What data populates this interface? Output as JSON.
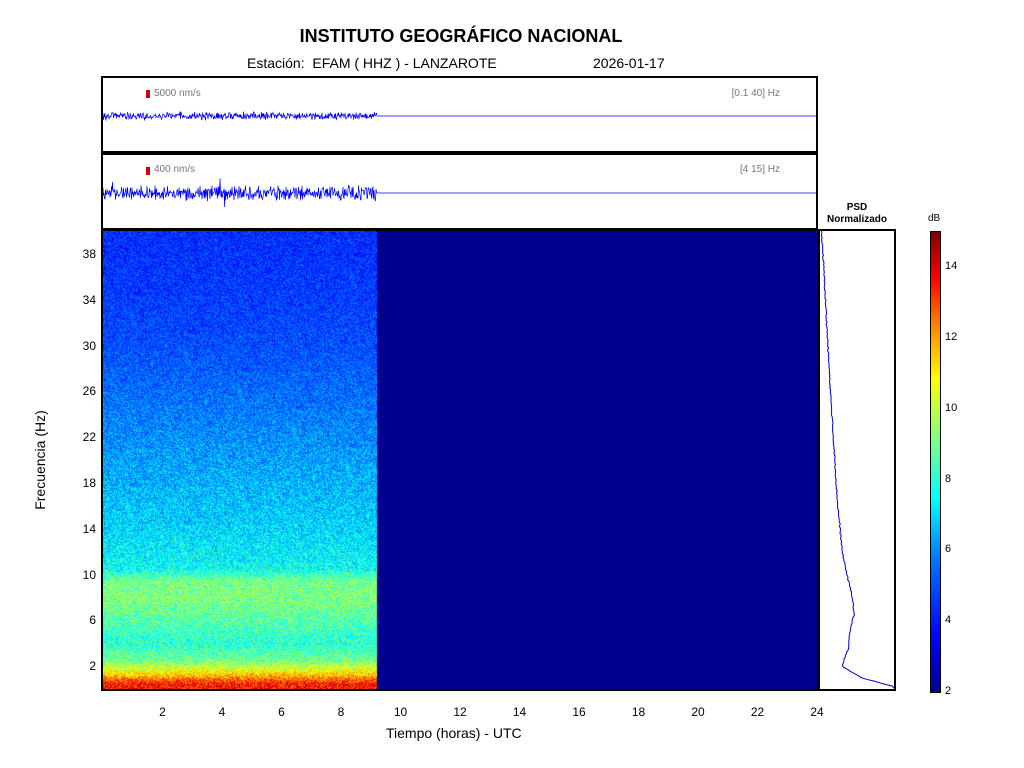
{
  "header": {
    "title": "INSTITUTO GEOGRÁFICO NACIONAL",
    "station": "Estación:  EFAM ( HHZ ) - LANZAROTE",
    "date": "2026-01-17"
  },
  "traces": [
    {
      "scale": "5000 nm/s",
      "band": "[0.1 40] Hz",
      "color": "#0000ff"
    },
    {
      "scale": "400 nm/s",
      "band": "[4 15] Hz",
      "color": "#0000ff"
    }
  ],
  "psd": {
    "title_line1": "PSD",
    "title_line2": "Normalizado"
  },
  "colorbar": {
    "unit": "dB",
    "min": 2,
    "max": 15,
    "ticks": [
      2,
      4,
      6,
      8,
      10,
      12,
      14
    ]
  },
  "chart_data": {
    "type": "heatmap",
    "title": "INSTITUTO GEOGRÁFICO NACIONAL",
    "xlabel": "Tiempo (horas) - UTC",
    "ylabel": "Frecuencia  (Hz)",
    "xlim": [
      0,
      24
    ],
    "ylim": [
      0,
      40
    ],
    "xticks": [
      2,
      4,
      6,
      8,
      10,
      12,
      14,
      16,
      18,
      20,
      22,
      24
    ],
    "yticks": [
      2,
      6,
      10,
      14,
      18,
      22,
      26,
      30,
      34,
      38
    ],
    "data_end_hour": 9.2,
    "spectrum_profile_db": [
      {
        "freq": 0.5,
        "db": 13.5
      },
      {
        "freq": 1.5,
        "db": 11.0
      },
      {
        "freq": 2.5,
        "db": 9.0
      },
      {
        "freq": 4.0,
        "db": 8.0
      },
      {
        "freq": 6.0,
        "db": 8.6
      },
      {
        "freq": 8.0,
        "db": 9.2
      },
      {
        "freq": 9.5,
        "db": 9.0
      },
      {
        "freq": 10.5,
        "db": 7.6
      },
      {
        "freq": 14.0,
        "db": 7.0
      },
      {
        "freq": 18.0,
        "db": 6.5
      },
      {
        "freq": 22.0,
        "db": 6.0
      },
      {
        "freq": 26.0,
        "db": 5.5
      },
      {
        "freq": 30.0,
        "db": 5.0
      },
      {
        "freq": 34.0,
        "db": 4.7
      },
      {
        "freq": 40.0,
        "db": 4.4
      }
    ],
    "psd_normalized": [
      {
        "freq": 0.2,
        "value": 1.0
      },
      {
        "freq": 1.0,
        "value": 0.55
      },
      {
        "freq": 2.0,
        "value": 0.3
      },
      {
        "freq": 3.5,
        "value": 0.38
      },
      {
        "freq": 5.0,
        "value": 0.4
      },
      {
        "freq": 6.5,
        "value": 0.46
      },
      {
        "freq": 8.0,
        "value": 0.44
      },
      {
        "freq": 9.5,
        "value": 0.38
      },
      {
        "freq": 12.0,
        "value": 0.3
      },
      {
        "freq": 16.0,
        "value": 0.24
      },
      {
        "freq": 20.0,
        "value": 0.2
      },
      {
        "freq": 26.0,
        "value": 0.14
      },
      {
        "freq": 32.0,
        "value": 0.09
      },
      {
        "freq": 38.0,
        "value": 0.04
      },
      {
        "freq": 40.0,
        "value": 0.02
      }
    ]
  }
}
